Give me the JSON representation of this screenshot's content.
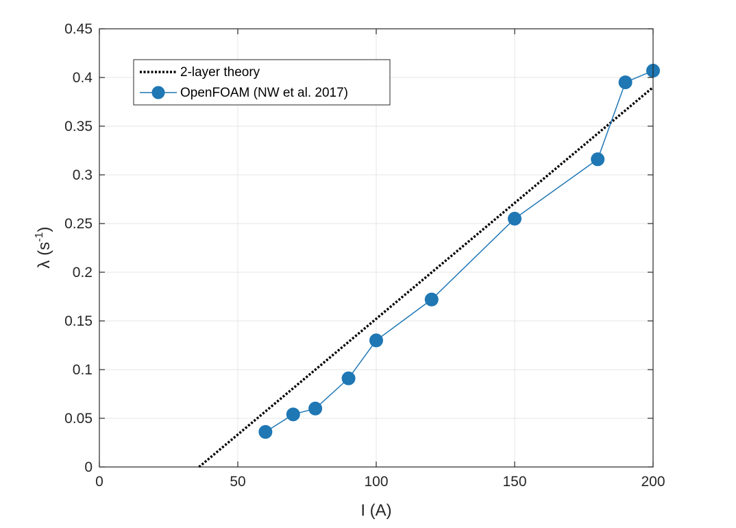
{
  "chart_data": {
    "type": "line",
    "title": "",
    "xlabel": "I (A)",
    "ylabel": {
      "base": "λ (s",
      "sup": "-1",
      "close": ")"
    },
    "xlim": [
      0,
      200
    ],
    "ylim": [
      0,
      0.45
    ],
    "xticks": [
      0,
      50,
      100,
      150,
      200
    ],
    "xtick_labels": [
      "0",
      "50",
      "100",
      "150",
      "200"
    ],
    "yticks": [
      0,
      0.05,
      0.1,
      0.15,
      0.2,
      0.25,
      0.3,
      0.35,
      0.4,
      0.45
    ],
    "ytick_labels": [
      "0",
      "0.05",
      "0.1",
      "0.15",
      "0.2",
      "0.25",
      "0.3",
      "0.35",
      "0.4",
      "0.45"
    ],
    "grid": true,
    "legend_position": "top-left",
    "series": [
      {
        "name": "2-layer theory",
        "style": "dotted",
        "color": "#000000",
        "x": [
          36,
          200
        ],
        "y": [
          0,
          0.39
        ]
      },
      {
        "name": "OpenFOAM (NW et al. 2017)",
        "style": "line-marker",
        "color": "#1f77b4",
        "x": [
          60,
          70,
          78,
          90,
          100,
          120,
          150,
          180,
          190,
          200
        ],
        "y": [
          0.036,
          0.054,
          0.06,
          0.091,
          0.13,
          0.172,
          0.255,
          0.316,
          0.395,
          0.407
        ]
      }
    ]
  }
}
